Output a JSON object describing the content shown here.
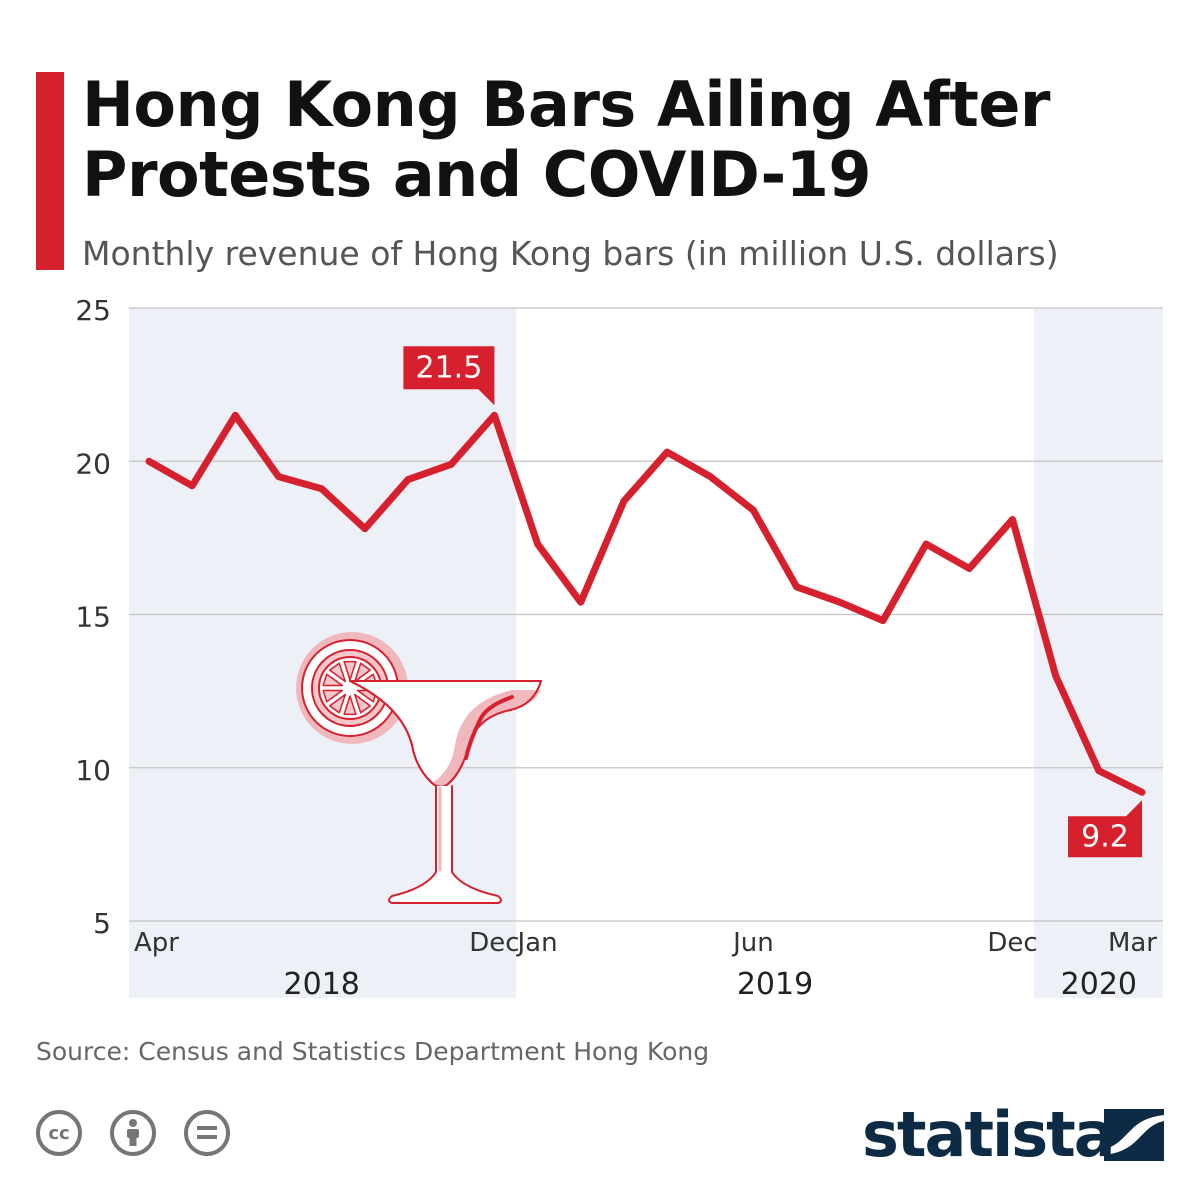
{
  "header": {
    "title": "Hong Kong Bars Ailing After Protests and COVID-19",
    "subtitle": "Monthly revenue of Hong Kong bars (in million U.S. dollars)"
  },
  "chart_data": {
    "type": "line",
    "y_range": [
      5,
      25
    ],
    "y_ticks": [
      5,
      10,
      15,
      20,
      25
    ],
    "grid": true,
    "x": [
      "Apr 2018",
      "May 2018",
      "Jun 2018",
      "Jul 2018",
      "Aug 2018",
      "Sep 2018",
      "Oct 2018",
      "Nov 2018",
      "Dec 2018",
      "Jan 2019",
      "Feb 2019",
      "Mar 2019",
      "Apr 2019",
      "May 2019",
      "Jun 2019",
      "Jul 2019",
      "Aug 2019",
      "Sep 2019",
      "Oct 2019",
      "Nov 2019",
      "Dec 2019",
      "Jan 2020",
      "Feb 2020",
      "Mar 2020"
    ],
    "values": [
      20.0,
      19.2,
      21.5,
      19.5,
      19.1,
      17.8,
      19.4,
      19.9,
      21.5,
      17.3,
      15.4,
      18.7,
      20.3,
      19.5,
      18.4,
      15.9,
      15.4,
      14.8,
      17.3,
      16.5,
      18.1,
      13.0,
      9.9,
      9.2
    ],
    "month_labels": [
      {
        "index": 0,
        "text": "Apr"
      },
      {
        "index": 8,
        "text": "Dec"
      },
      {
        "index": 9,
        "text": "Jan"
      },
      {
        "index": 14,
        "text": "Jun"
      },
      {
        "index": 20,
        "text": "Dec"
      },
      {
        "index": 23,
        "text": "Mar"
      }
    ],
    "year_labels": [
      {
        "text": "2018",
        "start_index": 0,
        "end_index": 8,
        "shaded": true
      },
      {
        "text": "2019",
        "start_index": 9,
        "end_index": 20,
        "shaded": false
      },
      {
        "text": "2020",
        "start_index": 21,
        "end_index": 23,
        "shaded": true
      }
    ],
    "callouts": [
      {
        "index": 8,
        "label": "21.5",
        "position": "above"
      },
      {
        "index": 23,
        "label": "9.2",
        "position": "below"
      }
    ],
    "line_color": "#d7202e",
    "shade_color": "#edf0f7"
  },
  "footer": {
    "source": "Source: Census and Statistics Department Hong Kong",
    "brand": "statista",
    "license_icons": [
      "cc-icon",
      "attribution-icon",
      "no-derivatives-icon"
    ],
    "license_cc_text": "cc"
  }
}
